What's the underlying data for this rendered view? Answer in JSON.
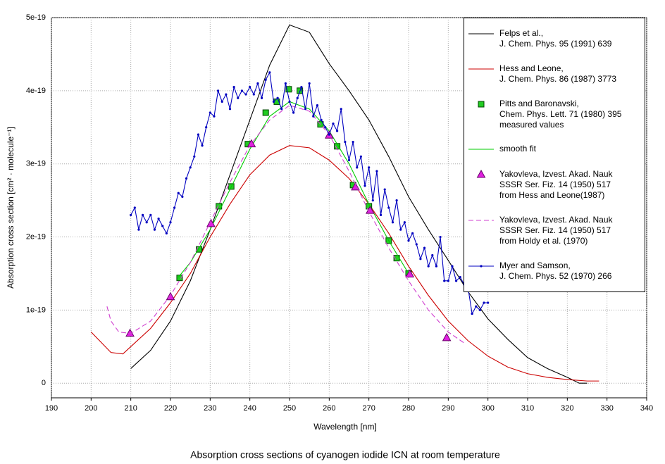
{
  "chart_data": {
    "type": "line",
    "title": "Absorption cross sections of cyanogen iodide ICN at room temperature",
    "xlabel": "Wavelength [nm]",
    "ylabel": "Absorption cross section [cm² · molecule⁻¹]",
    "xlim": [
      190,
      340
    ],
    "xticks": [
      190,
      200,
      210,
      220,
      230,
      240,
      250,
      260,
      270,
      280,
      290,
      300,
      310,
      320,
      330,
      340
    ],
    "ylim": [
      -2e-20,
      5e-19
    ],
    "yticks": [
      0,
      1e-19,
      2e-19,
      3e-19,
      4e-19,
      5e-19
    ],
    "grid": true,
    "legend": "upper right",
    "series": [
      {
        "name": "Felps et al.,\nJ. Chem. Phys. 95 (1991) 639",
        "color": "#000000",
        "line": "solid",
        "marker": "none",
        "x": [
          210,
          215,
          220,
          225,
          230,
          235,
          240,
          245,
          250,
          255,
          260,
          265,
          270,
          275,
          280,
          285,
          290,
          295,
          300,
          305,
          310,
          315,
          320,
          323,
          325
        ],
        "values": [
          2e-20,
          4.5e-20,
          8.5e-20,
          1.4e-19,
          2.1e-19,
          2.85e-19,
          3.6e-19,
          4.35e-19,
          4.9e-19,
          4.8e-19,
          4.37e-19,
          4e-19,
          3.6e-19,
          3.1e-19,
          2.55e-19,
          2.1e-19,
          1.68e-19,
          1.25e-19,
          8.8e-20,
          6e-20,
          3.5e-20,
          2e-20,
          8e-21,
          0,
          0
        ]
      },
      {
        "name": "Hess and Leone,\nJ. Chem. Phys. 86 (1987) 3773",
        "color": "#cc0000",
        "line": "solid",
        "marker": "none",
        "x": [
          200,
          205,
          208,
          210,
          215,
          220,
          225,
          230,
          235,
          240,
          245,
          250,
          255,
          260,
          265,
          270,
          275,
          280,
          285,
          290,
          295,
          300,
          305,
          310,
          315,
          320,
          325,
          328
        ],
        "values": [
          7e-20,
          4.2e-20,
          4e-20,
          5e-20,
          7.5e-20,
          1.1e-19,
          1.5e-19,
          2e-19,
          2.45e-19,
          2.85e-19,
          3.12e-19,
          3.25e-19,
          3.22e-19,
          3.05e-19,
          2.8e-19,
          2.45e-19,
          2.05e-19,
          1.6e-19,
          1.2e-19,
          8.5e-20,
          5.8e-20,
          3.7e-20,
          2.2e-20,
          1.3e-20,
          8e-21,
          5e-21,
          3e-21,
          3e-21
        ]
      },
      {
        "name": "Pitts and Baronavski,\nChem. Phys. Lett. 71 (1980) 395\nmeasured values",
        "color": "#22cc22",
        "line": "none",
        "marker": "square",
        "x": [
          222.3,
          227.2,
          232.2,
          235.3,
          239.5,
          244,
          246.8,
          249.8,
          252.6,
          257.8,
          262,
          266,
          270,
          275,
          277,
          280
        ],
        "values": [
          1.44e-19,
          1.83e-19,
          2.42e-19,
          2.69e-19,
          3.27e-19,
          3.7e-19,
          3.85e-19,
          4.02e-19,
          4e-19,
          3.54e-19,
          3.24e-19,
          2.71e-19,
          2.42e-19,
          1.95e-19,
          1.71e-19,
          1.5e-19
        ]
      },
      {
        "name": "smooth fit",
        "color": "#00cc00",
        "line": "solid",
        "marker": "none",
        "x": [
          222,
          225,
          230,
          235,
          240,
          245,
          250,
          255,
          260,
          265,
          270,
          275,
          280
        ],
        "values": [
          1.45e-19,
          1.65e-19,
          2.1e-19,
          2.65e-19,
          3.2e-19,
          3.65e-19,
          3.85e-19,
          3.75e-19,
          3.45e-19,
          3e-19,
          2.45e-19,
          1.95e-19,
          1.5e-19
        ]
      },
      {
        "name": "Yakovleva, Izvest. Akad. Nauk\nSSSR Ser. Fiz. 14 (1950) 517\nfrom Hess and Leone(1987)",
        "color": "#e020e0",
        "line": "none",
        "marker": "triangle",
        "x": [
          209.8,
          220,
          230.2,
          240.4,
          260,
          266.6,
          270.3,
          280.3,
          289.6
        ],
        "values": [
          6.8e-20,
          1.18e-19,
          2.18e-19,
          3.27e-19,
          3.39e-19,
          2.68e-19,
          2.36e-19,
          1.49e-19,
          6.2e-20
        ]
      },
      {
        "name": "Yakovleva, Izvest. Akad. Nauk\nSSSR Ser. Fiz. 14 (1950) 517\nfrom Holdy et al. (1970)",
        "color": "#d040d0",
        "line": "dashed",
        "marker": "none",
        "x": [
          204,
          205,
          207,
          210,
          215,
          220,
          225,
          230,
          235,
          240,
          245,
          250,
          255,
          260,
          265,
          270,
          275,
          280,
          285,
          290,
          294
        ],
        "values": [
          1.05e-19,
          8.5e-20,
          7e-20,
          6.8e-20,
          8.5e-20,
          1.2e-19,
          1.65e-19,
          2.2e-19,
          2.75e-19,
          3.25e-19,
          3.6e-19,
          3.8e-19,
          3.72e-19,
          3.4e-19,
          2.9e-19,
          2.35e-19,
          1.85e-19,
          1.4e-19,
          1e-19,
          7e-20,
          5.5e-20
        ]
      },
      {
        "name": "Myer and Samson,\nJ. Chem. Phys. 52 (1970) 266",
        "color": "#0000c0",
        "line": "solid",
        "marker": "dot",
        "x": [
          210,
          211,
          212,
          213,
          214,
          215,
          216,
          217,
          218,
          219,
          220,
          221,
          222,
          223,
          224,
          225,
          226,
          227,
          228,
          229,
          230,
          231,
          232,
          233,
          234,
          235,
          236,
          237,
          238,
          239,
          240,
          241,
          242,
          243,
          244,
          245,
          246,
          247,
          248,
          249,
          250,
          251,
          252,
          253,
          254,
          255,
          256,
          257,
          258,
          259,
          260,
          261,
          262,
          263,
          264,
          265,
          266,
          267,
          268,
          269,
          270,
          271,
          272,
          273,
          274,
          275,
          276,
          277,
          278,
          279,
          280,
          281,
          282,
          283,
          284,
          285,
          286,
          287,
          288,
          289,
          290,
          291,
          292,
          293,
          294,
          295,
          296,
          297,
          298,
          299,
          300
        ],
        "values": [
          2.3e-19,
          2.4e-19,
          2.1e-19,
          2.3e-19,
          2.2e-19,
          2.3e-19,
          2.1e-19,
          2.25e-19,
          2.15e-19,
          2.05e-19,
          2.2e-19,
          2.4e-19,
          2.6e-19,
          2.55e-19,
          2.8e-19,
          2.95e-19,
          3.1e-19,
          3.4e-19,
          3.25e-19,
          3.5e-19,
          3.7e-19,
          3.65e-19,
          4e-19,
          3.85e-19,
          3.95e-19,
          3.75e-19,
          4.05e-19,
          3.9e-19,
          4e-19,
          3.95e-19,
          4.05e-19,
          3.95e-19,
          4.1e-19,
          3.9e-19,
          4.15e-19,
          4.25e-19,
          3.85e-19,
          3.9e-19,
          3.75e-19,
          4.1e-19,
          3.85e-19,
          3.7e-19,
          3.9e-19,
          4.05e-19,
          3.75e-19,
          4.1e-19,
          3.65e-19,
          3.8e-19,
          3.6e-19,
          3.5e-19,
          3.4e-19,
          3.55e-19,
          3.45e-19,
          3.75e-19,
          3.3e-19,
          3.05e-19,
          3.3e-19,
          2.95e-19,
          3.1e-19,
          2.7e-19,
          2.95e-19,
          2.5e-19,
          2.9e-19,
          2.3e-19,
          2.65e-19,
          2.4e-19,
          2.2e-19,
          2.5e-19,
          2.1e-19,
          2.2e-19,
          1.95e-19,
          2.05e-19,
          1.9e-19,
          1.7e-19,
          1.85e-19,
          1.6e-19,
          1.75e-19,
          1.6e-19,
          2e-19,
          1.4e-19,
          1.4e-19,
          1.6e-19,
          1.4e-19,
          1.45e-19,
          1.35e-19,
          1.3e-19,
          9.5e-20,
          1.05e-19,
          1e-19,
          1.1e-19,
          1.1e-19
        ]
      }
    ]
  }
}
